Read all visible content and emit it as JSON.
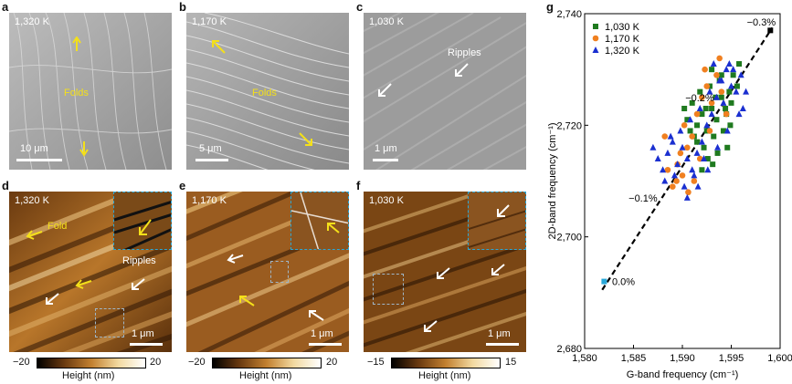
{
  "panel_labels": {
    "a": "a",
    "b": "b",
    "c": "c",
    "d": "d",
    "e": "e",
    "f": "f",
    "g": "g"
  },
  "sem": {
    "a": {
      "temp": "1,320 K",
      "scale": "10 μm",
      "note": "Folds"
    },
    "b": {
      "temp": "1,170 K",
      "scale": "5 μm",
      "note": "Folds"
    },
    "c": {
      "temp": "1,030 K",
      "scale": "1 μm",
      "note": "Ripples"
    }
  },
  "afm": {
    "d": {
      "temp": "1,320 K",
      "scale": "1 μm",
      "fold": "Fold",
      "ripples": "Ripples",
      "cmin": "−20",
      "cmax": "20",
      "clabel": "Height (nm)"
    },
    "e": {
      "temp": "1,170 K",
      "scale": "1 μm",
      "cmin": "−20",
      "cmax": "20",
      "clabel": "Height (nm)"
    },
    "f": {
      "temp": "1,030 K",
      "scale": "1 μm",
      "cmin": "−15",
      "cmax": "15",
      "clabel": "Height (nm)"
    }
  },
  "colors": {
    "c1030": "#1f7a1f",
    "c1170": "#f08020",
    "c1320": "#1a2fd0",
    "fold_arrow": "#f4e01a",
    "ripple_arrow": "#ffffff",
    "inset_border": "#29a7d8"
  },
  "chart_data": {
    "type": "scatter",
    "xlabel": "G-band frequency (cm⁻¹)",
    "ylabel": "2D-band frequency (cm⁻¹)",
    "xlim": [
      1580,
      1600
    ],
    "ylim": [
      2680,
      2740
    ],
    "xticks": [
      "1,580",
      "1,585",
      "1,590",
      "1,595",
      "1,600"
    ],
    "yticks": [
      "2,680",
      "2,700",
      "2,720",
      "2,740"
    ],
    "xtick_values": [
      1580,
      1585,
      1590,
      1595,
      1600
    ],
    "ytick_values": [
      2680,
      2700,
      2720,
      2740
    ],
    "legend_position": "top-left",
    "series": [
      {
        "name": "1,030 K",
        "marker": "square",
        "color": "#1f7a1f",
        "points": [
          [
            1590.5,
            2721
          ],
          [
            1591,
            2724
          ],
          [
            1591.5,
            2720
          ],
          [
            1592,
            2722
          ],
          [
            1592.5,
            2719
          ],
          [
            1593,
            2723
          ],
          [
            1593.5,
            2721
          ],
          [
            1594,
            2725
          ],
          [
            1594.5,
            2722
          ],
          [
            1591.2,
            2718
          ],
          [
            1592.2,
            2716
          ],
          [
            1593.2,
            2718
          ],
          [
            1594.2,
            2719
          ],
          [
            1591.8,
            2726
          ],
          [
            1592.8,
            2727
          ],
          [
            1593.8,
            2728
          ],
          [
            1594.8,
            2726
          ],
          [
            1595.2,
            2729
          ],
          [
            1595.6,
            2727
          ],
          [
            1590.8,
            2719
          ],
          [
            1592.6,
            2714
          ],
          [
            1593.6,
            2715
          ],
          [
            1594.6,
            2716
          ],
          [
            1593.0,
            2730
          ],
          [
            1594.0,
            2729
          ],
          [
            1595.0,
            2724
          ],
          [
            1591.5,
            2717
          ],
          [
            1592.4,
            2723
          ],
          [
            1593.4,
            2725
          ],
          [
            1594.4,
            2723
          ],
          [
            1590.2,
            2723
          ],
          [
            1595.8,
            2731
          ],
          [
            1592.0,
            2712
          ],
          [
            1593.1,
            2713
          ],
          [
            1594.9,
            2720
          ]
        ]
      },
      {
        "name": "1,170 K",
        "marker": "circle",
        "color": "#f08020",
        "points": [
          [
            1588.5,
            2712
          ],
          [
            1589,
            2709
          ],
          [
            1589.5,
            2713
          ],
          [
            1590,
            2711
          ],
          [
            1590.5,
            2716
          ],
          [
            1591,
            2718
          ],
          [
            1591.5,
            2722
          ],
          [
            1592,
            2725
          ],
          [
            1592.5,
            2727
          ],
          [
            1593,
            2724
          ],
          [
            1593.5,
            2729
          ],
          [
            1594,
            2726
          ],
          [
            1590.2,
            2720
          ],
          [
            1589.8,
            2715
          ],
          [
            1591.8,
            2714
          ],
          [
            1592.8,
            2719
          ],
          [
            1588.2,
            2718
          ],
          [
            1591.2,
            2710
          ],
          [
            1590.6,
            2708
          ],
          [
            1594.5,
            2722
          ],
          [
            1593.8,
            2732
          ],
          [
            1589.4,
            2710
          ],
          [
            1592.3,
            2730
          ]
        ]
      },
      {
        "name": "1,320 K",
        "marker": "triangle",
        "color": "#1a2fd0",
        "points": [
          [
            1587,
            2716
          ],
          [
            1587.5,
            2714
          ],
          [
            1588,
            2712
          ],
          [
            1588.5,
            2715
          ],
          [
            1589,
            2717
          ],
          [
            1589.5,
            2713
          ],
          [
            1590,
            2716
          ],
          [
            1590.5,
            2714
          ],
          [
            1591,
            2712
          ],
          [
            1591.5,
            2715
          ],
          [
            1592,
            2717
          ],
          [
            1592.5,
            2720
          ],
          [
            1593,
            2722
          ],
          [
            1593.5,
            2725
          ],
          [
            1594,
            2728
          ],
          [
            1594.5,
            2730
          ],
          [
            1595,
            2727
          ],
          [
            1595.5,
            2726
          ],
          [
            1596,
            2729
          ],
          [
            1596.5,
            2726
          ],
          [
            1588.2,
            2710
          ],
          [
            1589.2,
            2711
          ],
          [
            1590.2,
            2709
          ],
          [
            1591.2,
            2711
          ],
          [
            1592.2,
            2714
          ],
          [
            1593.2,
            2731
          ],
          [
            1594.2,
            2724
          ],
          [
            1595.2,
            2730
          ],
          [
            1596.2,
            2723
          ],
          [
            1588.8,
            2718
          ],
          [
            1589.8,
            2719
          ],
          [
            1590.8,
            2721
          ],
          [
            1591.8,
            2723
          ],
          [
            1592.8,
            2726
          ],
          [
            1593.8,
            2728
          ],
          [
            1594.8,
            2731
          ],
          [
            1595.8,
            2722
          ],
          [
            1590.5,
            2707
          ],
          [
            1591.6,
            2709
          ],
          [
            1592.6,
            2712
          ],
          [
            1593.6,
            2716
          ],
          [
            1594.6,
            2719
          ]
        ]
      }
    ],
    "reference_points": [
      {
        "x": 1582,
        "y": 2692,
        "color": "#29a7d8"
      },
      {
        "x": 1599,
        "y": 2737,
        "color": "#000000"
      }
    ],
    "fit_line": {
      "x": [
        1581.8,
        1599.2
      ],
      "y": [
        2690.5,
        2737.5
      ]
    },
    "annotations": [
      {
        "text": "0.0%",
        "x": 1582.8,
        "y": 2692
      },
      {
        "text": "−0.1%",
        "x": 1584.5,
        "y": 2707
      },
      {
        "text": "−0.2%",
        "x": 1590.3,
        "y": 2725
      },
      {
        "text": "−0.3%",
        "x": 1596.6,
        "y": 2738.5
      }
    ]
  }
}
